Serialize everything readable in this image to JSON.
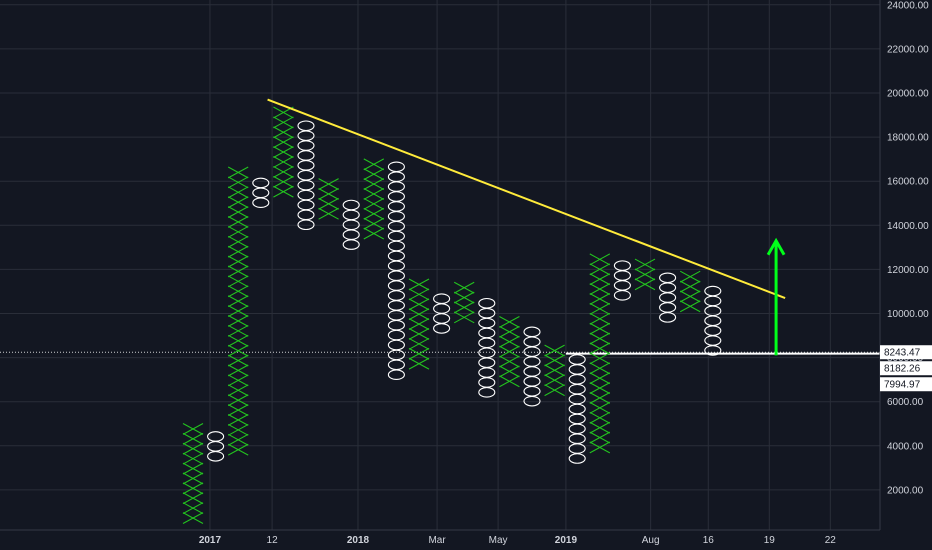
{
  "chart_data": {
    "type": "point-and-figure",
    "title": "",
    "xlabel": "",
    "ylabel": "",
    "ylim": [
      0,
      24500
    ],
    "grid": true,
    "colors": {
      "background": "#131722",
      "grid": "#2a2e39",
      "x_box": "#23c21f",
      "o_box": "#ffffff",
      "trendline": "#ffeb3b",
      "arrow": "#00ff1a",
      "level_line": "#ffffff",
      "tag_bg": "#ffffff",
      "tag_text": "#131722"
    },
    "y_ticks": [
      {
        "value": 2000,
        "label": "2000.00"
      },
      {
        "value": 4000,
        "label": "4000.00"
      },
      {
        "value": 6000,
        "label": "6000.00"
      },
      {
        "value": 8000,
        "label": "8000.00"
      },
      {
        "value": 10000,
        "label": "10000.00"
      },
      {
        "value": 12000,
        "label": "12000.00"
      },
      {
        "value": 14000,
        "label": "14000.00"
      },
      {
        "value": 16000,
        "label": "16000.00"
      },
      {
        "value": 18000,
        "label": "18000.00"
      },
      {
        "value": 20000,
        "label": "20000.00"
      },
      {
        "value": 22000,
        "label": "22000.00"
      },
      {
        "value": 24000,
        "label": "24000.00"
      }
    ],
    "x_ticks": [
      {
        "col": 0.75,
        "label": "2017",
        "bold": true
      },
      {
        "col": 3.5,
        "label": "12",
        "bold": false
      },
      {
        "col": 7.3,
        "label": "2018",
        "bold": true
      },
      {
        "col": 10.8,
        "label": "Mar",
        "bold": false
      },
      {
        "col": 13.5,
        "label": "May",
        "bold": false
      },
      {
        "col": 16.5,
        "label": "2019",
        "bold": true
      },
      {
        "col": 20.25,
        "label": "Aug",
        "bold": false
      },
      {
        "col": 22.8,
        "label": "16",
        "bold": false
      },
      {
        "col": 25.5,
        "label": "19",
        "bold": false
      },
      {
        "col": 28.2,
        "label": "22",
        "bold": false
      }
    ],
    "columns": [
      {
        "type": "X",
        "low": 500,
        "high": 5000
      },
      {
        "type": "O",
        "low": 3300,
        "high": 4500
      },
      {
        "type": "X",
        "low": 3600,
        "high": 16700
      },
      {
        "type": "O",
        "low": 14800,
        "high": 16200
      },
      {
        "type": "X",
        "low": 15300,
        "high": 19200
      },
      {
        "type": "O",
        "low": 13800,
        "high": 18600
      },
      {
        "type": "X",
        "low": 14300,
        "high": 16000
      },
      {
        "type": "O",
        "low": 12900,
        "high": 15200
      },
      {
        "type": "X",
        "low": 13400,
        "high": 17200
      },
      {
        "type": "O",
        "low": 7000,
        "high": 16700
      },
      {
        "type": "X",
        "low": 7500,
        "high": 11400
      },
      {
        "type": "O",
        "low": 9100,
        "high": 10800
      },
      {
        "type": "X",
        "low": 9600,
        "high": 11300
      },
      {
        "type": "O",
        "low": 6200,
        "high": 10800
      },
      {
        "type": "X",
        "low": 6700,
        "high": 10000
      },
      {
        "type": "O",
        "low": 5800,
        "high": 9400
      },
      {
        "type": "X",
        "low": 6300,
        "high": 8700
      },
      {
        "type": "O",
        "low": 3200,
        "high": 8200
      },
      {
        "type": "X",
        "low": 3700,
        "high": 12800
      },
      {
        "type": "O",
        "low": 10600,
        "high": 12300
      },
      {
        "type": "X",
        "low": 11100,
        "high": 12300
      },
      {
        "type": "O",
        "low": 9600,
        "high": 11800
      },
      {
        "type": "X",
        "low": 10100,
        "high": 11800
      },
      {
        "type": "O",
        "low": 8100,
        "high": 11300
      }
    ],
    "trendline": {
      "from": {
        "col": 3.3,
        "value": 19700
      },
      "to": {
        "col": 26.2,
        "value": 10700
      }
    },
    "arrow": {
      "col": 25.8,
      "from": 8100,
      "to": 13300
    },
    "levels": [
      {
        "value": 8243.47,
        "label": "8243.47",
        "style": "dotted"
      },
      {
        "value": 8182.26,
        "label": "8182.26",
        "style": "solid"
      },
      {
        "value": 7994.97,
        "label": "7994.97",
        "style": "none"
      }
    ],
    "level_line_start_col": 16.5
  }
}
